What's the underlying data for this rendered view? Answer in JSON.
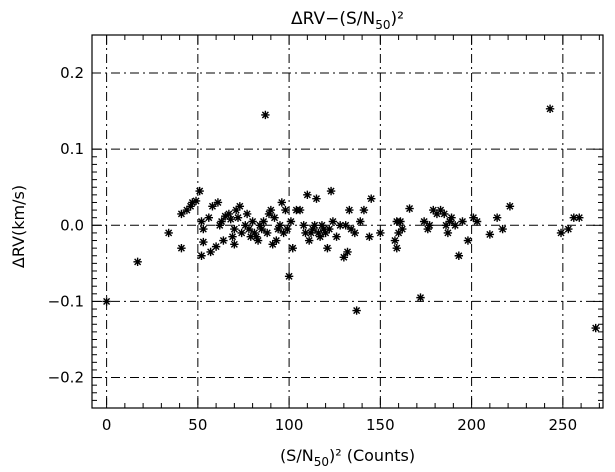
{
  "chart_data": {
    "type": "scatter",
    "title": "ΔRV−(S/N",
    "title_sub": "50",
    "title_sup": ")²",
    "xlabel": "(S/N",
    "xlabel_sub": "50",
    "xlabel_sup": ")² (Counts)",
    "ylabel": "ΔRV(km/s)",
    "xlim": [
      -8,
      272
    ],
    "ylim": [
      -0.24,
      0.25
    ],
    "x_ticks": [
      0,
      50,
      100,
      150,
      200,
      250
    ],
    "x_tick_labels": [
      "0",
      "50",
      "100",
      "150",
      "200",
      "250"
    ],
    "y_ticks": [
      -0.2,
      -0.1,
      0.0,
      0.1,
      0.2
    ],
    "y_tick_labels": [
      "−0.2",
      "−0.1",
      "0.0",
      "0.1",
      "0.2"
    ],
    "grid": true,
    "grid_style": "dash-dot",
    "marker": "asterisk",
    "color": "#000000",
    "points": [
      [
        0,
        -0.1
      ],
      [
        17,
        -0.048
      ],
      [
        34,
        -0.01
      ],
      [
        41,
        0.015
      ],
      [
        41,
        -0.03
      ],
      [
        44,
        0.02
      ],
      [
        46,
        0.025
      ],
      [
        47,
        0.03
      ],
      [
        49,
        0.032
      ],
      [
        51,
        0.045
      ],
      [
        52,
        -0.04
      ],
      [
        52,
        0.005
      ],
      [
        53,
        -0.022
      ],
      [
        53,
        -0.005
      ],
      [
        56,
        0.01
      ],
      [
        57,
        -0.035
      ],
      [
        58,
        0.025
      ],
      [
        60,
        -0.028
      ],
      [
        61,
        0.03
      ],
      [
        62,
        0.0
      ],
      [
        63,
        0.005
      ],
      [
        64,
        -0.02
      ],
      [
        65,
        0.012
      ],
      [
        67,
        0.015
      ],
      [
        68,
        0.008
      ],
      [
        69,
        -0.015
      ],
      [
        70,
        -0.005
      ],
      [
        70,
        -0.025
      ],
      [
        71,
        0.02
      ],
      [
        72,
        0.01
      ],
      [
        73,
        0.025
      ],
      [
        74,
        -0.01
      ],
      [
        76,
        0.0
      ],
      [
        77,
        0.015
      ],
      [
        78,
        -0.005
      ],
      [
        79,
        -0.015
      ],
      [
        80,
        0.005
      ],
      [
        81,
        -0.01
      ],
      [
        82,
        -0.015
      ],
      [
        83,
        -0.02
      ],
      [
        84,
        0.0
      ],
      [
        85,
        -0.005
      ],
      [
        86,
        0.005
      ],
      [
        87,
        0.145
      ],
      [
        88,
        -0.01
      ],
      [
        89,
        0.015
      ],
      [
        90,
        0.02
      ],
      [
        91,
        -0.025
      ],
      [
        92,
        0.01
      ],
      [
        93,
        -0.02
      ],
      [
        94,
        -0.005
      ],
      [
        95,
        0.0
      ],
      [
        96,
        0.03
      ],
      [
        97,
        -0.01
      ],
      [
        98,
        0.02
      ],
      [
        99,
        -0.005
      ],
      [
        100,
        -0.067
      ],
      [
        101,
        0.005
      ],
      [
        102,
        -0.03
      ],
      [
        104,
        0.02
      ],
      [
        106,
        0.02
      ],
      [
        108,
        0.0
      ],
      [
        109,
        -0.01
      ],
      [
        110,
        0.04
      ],
      [
        111,
        -0.02
      ],
      [
        112,
        -0.01
      ],
      [
        113,
        -0.005
      ],
      [
        114,
        0.0
      ],
      [
        115,
        0.035
      ],
      [
        116,
        -0.01
      ],
      [
        117,
        -0.015
      ],
      [
        118,
        0.0
      ],
      [
        119,
        -0.005
      ],
      [
        120,
        -0.01
      ],
      [
        121,
        -0.03
      ],
      [
        122,
        -0.005
      ],
      [
        123,
        0.045
      ],
      [
        124,
        0.005
      ],
      [
        126,
        -0.015
      ],
      [
        128,
        0.0
      ],
      [
        130,
        -0.042
      ],
      [
        131,
        0.0
      ],
      [
        132,
        -0.035
      ],
      [
        133,
        0.02
      ],
      [
        134,
        -0.005
      ],
      [
        136,
        -0.01
      ],
      [
        137,
        -0.112
      ],
      [
        139,
        0.005
      ],
      [
        141,
        0.02
      ],
      [
        144,
        -0.015
      ],
      [
        145,
        0.035
      ],
      [
        150,
        -0.01
      ],
      [
        158,
        -0.02
      ],
      [
        159,
        -0.03
      ],
      [
        159,
        0.005
      ],
      [
        160,
        -0.01
      ],
      [
        161,
        0.005
      ],
      [
        162,
        -0.005
      ],
      [
        166,
        0.022
      ],
      [
        172,
        -0.095
      ],
      [
        174,
        0.005
      ],
      [
        176,
        -0.005
      ],
      [
        177,
        0.0
      ],
      [
        179,
        0.02
      ],
      [
        181,
        0.015
      ],
      [
        183,
        0.02
      ],
      [
        185,
        0.015
      ],
      [
        186,
        0.0
      ],
      [
        187,
        -0.01
      ],
      [
        188,
        0.005
      ],
      [
        189,
        0.01
      ],
      [
        191,
        0.0
      ],
      [
        193,
        -0.04
      ],
      [
        195,
        0.005
      ],
      [
        198,
        -0.02
      ],
      [
        201,
        0.01
      ],
      [
        203,
        0.005
      ],
      [
        210,
        -0.012
      ],
      [
        214,
        0.01
      ],
      [
        217,
        -0.005
      ],
      [
        221,
        0.025
      ],
      [
        243,
        0.153
      ],
      [
        249,
        -0.01
      ],
      [
        253,
        -0.005
      ],
      [
        256,
        0.01
      ],
      [
        259,
        0.01
      ],
      [
        268,
        -0.135
      ]
    ]
  }
}
